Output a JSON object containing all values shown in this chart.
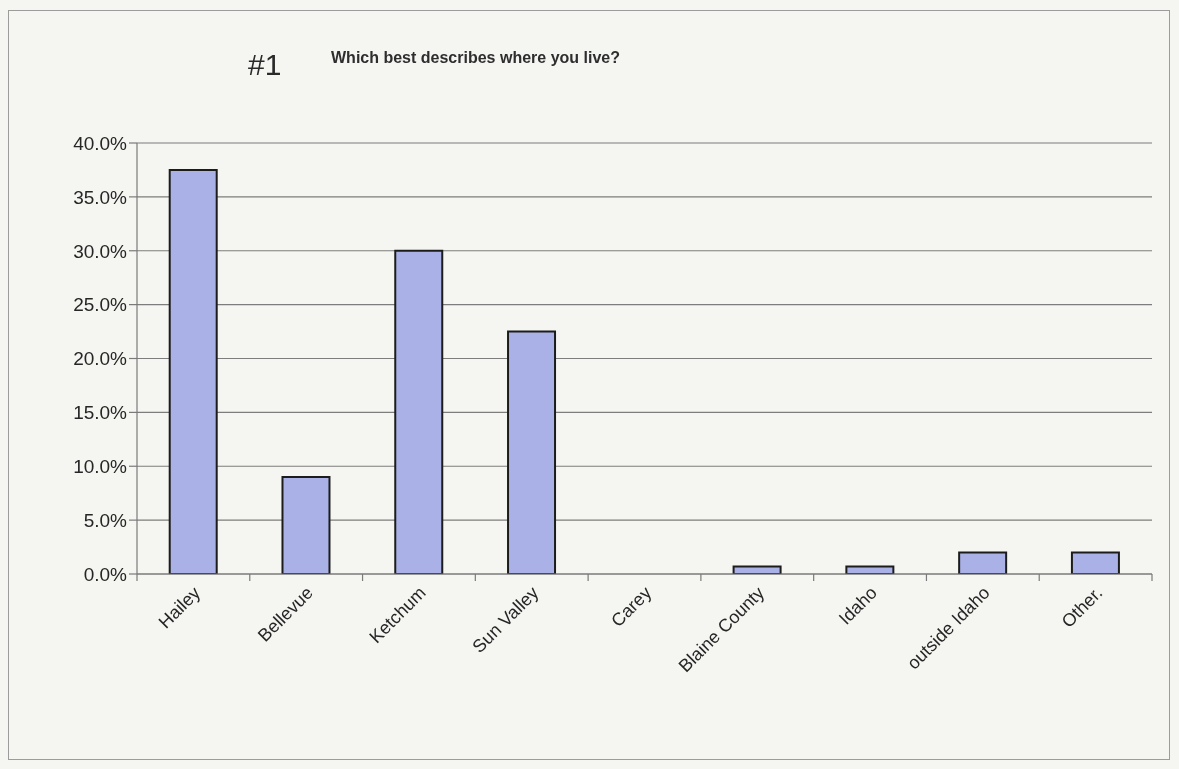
{
  "chart_data": {
    "type": "bar",
    "title": "#1",
    "subtitle": "Which best describes where you live?",
    "categories": [
      "Hailey",
      "Bellevue",
      "Ketchum",
      "Sun Valley",
      "Carey",
      "Blaine County",
      "Idaho",
      "outside Idaho",
      "Other."
    ],
    "values": [
      37.5,
      9.0,
      30.0,
      22.5,
      0,
      0.7,
      0.7,
      2.0,
      2.0
    ],
    "color": "#a9b1e6",
    "ylim": [
      0,
      40
    ],
    "yticks": [
      {
        "value": 0,
        "label": "0.0%"
      },
      {
        "value": 5,
        "label": "5.0%"
      },
      {
        "value": 10,
        "label": "10.0%"
      },
      {
        "value": 15,
        "label": "15.0%"
      },
      {
        "value": 20,
        "label": "20.0%"
      },
      {
        "value": 25,
        "label": "25.0%"
      },
      {
        "value": 30,
        "label": "30.0%"
      },
      {
        "value": 35,
        "label": "35.0%"
      },
      {
        "value": 40,
        "label": "40.0%"
      }
    ],
    "grid": "y"
  }
}
